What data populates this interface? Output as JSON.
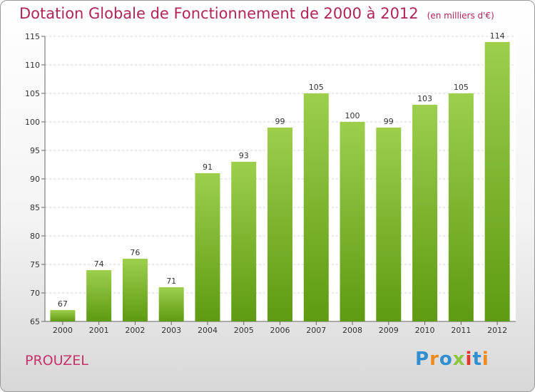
{
  "title": "Dotation Globale de Fonctionnement de 2000 à 2012",
  "unit": "(en milliers d'€)",
  "commune": "PROUZEL",
  "logo": {
    "letters": [
      "P",
      "r",
      "o",
      "x",
      "i",
      "t",
      "i"
    ],
    "colors": [
      "#2f8fd0",
      "#f08a1c",
      "#2f8fd0",
      "#8cc63f",
      "#e8322a",
      "#2f8fd0",
      "#f08a1c"
    ]
  },
  "chart_data": {
    "type": "bar",
    "categories": [
      "2000",
      "2001",
      "2002",
      "2003",
      "2004",
      "2005",
      "2006",
      "2007",
      "2008",
      "2009",
      "2010",
      "2011",
      "2012"
    ],
    "values": [
      67,
      74,
      76,
      71,
      91,
      93,
      99,
      105,
      100,
      99,
      103,
      105,
      114
    ],
    "ylim": [
      65,
      115
    ],
    "yticks": [
      65,
      70,
      75,
      80,
      85,
      90,
      95,
      100,
      105,
      110,
      115
    ],
    "grid": true,
    "bar_color_top": "#9ccf4c",
    "bar_color_bottom": "#5e9a12"
  }
}
